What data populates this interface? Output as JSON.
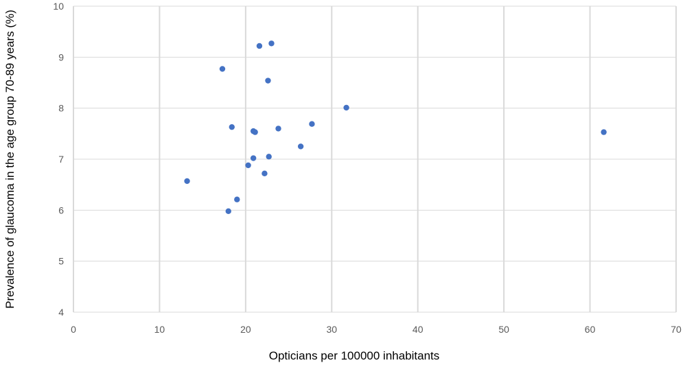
{
  "chart_data": {
    "type": "scatter",
    "title": "",
    "xlabel": "Opticians per 100000 inhabitants",
    "ylabel": "Prevalence of glaucoma in the age group 70-89 years (%)",
    "xlim": [
      0,
      70
    ],
    "ylim": [
      4,
      10
    ],
    "x_ticks": [
      "0",
      "10",
      "20",
      "30",
      "40",
      "50",
      "60",
      "70"
    ],
    "y_ticks": [
      "4",
      "5",
      "6",
      "7",
      "8",
      "9",
      "10"
    ],
    "grid": true,
    "legend": "none",
    "marker_color": "#4472c4",
    "points": [
      {
        "x": 13.2,
        "y": 6.57
      },
      {
        "x": 17.3,
        "y": 8.77
      },
      {
        "x": 18.0,
        "y": 5.98
      },
      {
        "x": 18.4,
        "y": 7.63
      },
      {
        "x": 19.0,
        "y": 6.21
      },
      {
        "x": 20.3,
        "y": 6.88
      },
      {
        "x": 20.9,
        "y": 7.02
      },
      {
        "x": 20.9,
        "y": 7.55
      },
      {
        "x": 21.1,
        "y": 7.53
      },
      {
        "x": 21.6,
        "y": 9.22
      },
      {
        "x": 22.2,
        "y": 6.72
      },
      {
        "x": 22.6,
        "y": 8.54
      },
      {
        "x": 22.7,
        "y": 7.05
      },
      {
        "x": 23.0,
        "y": 9.27
      },
      {
        "x": 23.8,
        "y": 7.6
      },
      {
        "x": 26.4,
        "y": 7.25
      },
      {
        "x": 27.7,
        "y": 7.69
      },
      {
        "x": 31.7,
        "y": 8.01
      },
      {
        "x": 61.6,
        "y": 7.53
      }
    ]
  }
}
